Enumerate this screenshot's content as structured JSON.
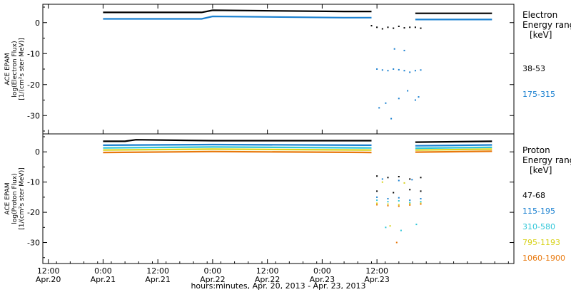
{
  "chart_data": [
    {
      "type": "scatter",
      "panel": "electron",
      "ylabel": [
        "ACE EPAM",
        "log(Electron Flux)",
        "[1/(cm²s ster MeV)]"
      ],
      "ylim": [
        -35,
        5
      ],
      "yticks": [
        0,
        -10,
        -20,
        -30
      ],
      "legend_title": [
        "Electron",
        "Energy ranges",
        "[keV]"
      ],
      "series": [
        {
          "name": "38-53",
          "color": "#000000",
          "segments": [
            [
              [
                0,
                3.3
              ],
              [
                0.9,
                3.3
              ],
              [
                1.0,
                4.0
              ],
              [
                2.2,
                3.6
              ],
              [
                2.45,
                3.6
              ]
            ],
            [
              [
                2.85,
                3.0
              ],
              [
                3.55,
                3.0
              ]
            ]
          ],
          "gap": [
            [
              2.45,
              -1.0
            ],
            [
              2.5,
              -1.5
            ],
            [
              2.55,
              -2.0
            ],
            [
              2.6,
              -1.5
            ],
            [
              2.65,
              -1.8
            ],
            [
              2.7,
              -1.2
            ],
            [
              2.75,
              -1.7
            ],
            [
              2.8,
              -1.5
            ],
            [
              2.85,
              -1.5
            ],
            [
              2.9,
              -1.8
            ]
          ]
        },
        {
          "name": "175-315",
          "color": "#1a80d0",
          "segments": [
            [
              [
                0,
                1.2
              ],
              [
                0.9,
                1.2
              ],
              [
                1.0,
                2.0
              ],
              [
                2.2,
                1.6
              ],
              [
                2.45,
                1.6
              ]
            ],
            [
              [
                2.85,
                1.0
              ],
              [
                3.55,
                1.0
              ]
            ]
          ],
          "gap": [
            [
              2.5,
              -15.0
            ],
            [
              2.55,
              -15.3
            ],
            [
              2.6,
              -15.5
            ],
            [
              2.65,
              -15.0
            ],
            [
              2.7,
              -15.2
            ],
            [
              2.75,
              -15.5
            ],
            [
              2.8,
              -16.0
            ],
            [
              2.85,
              -15.5
            ],
            [
              2.9,
              -15.3
            ],
            [
              2.52,
              -27.5
            ],
            [
              2.58,
              -26.0
            ],
            [
              2.63,
              -31.0
            ],
            [
              2.7,
              -24.5
            ],
            [
              2.78,
              -22.0
            ],
            [
              2.85,
              -25.0
            ],
            [
              2.88,
              -24.0
            ],
            [
              2.66,
              -8.5
            ],
            [
              2.75,
              -9.0
            ]
          ]
        }
      ]
    },
    {
      "type": "scatter",
      "panel": "proton",
      "ylabel": [
        "ACE EPAM",
        "log(Proton Flux)",
        "[1/(cm²s ster MeV)]"
      ],
      "ylim": [
        -36,
        5
      ],
      "yticks": [
        0,
        -10,
        -20,
        -30
      ],
      "legend_title": [
        "Proton",
        "Energy ranges",
        "[keV]"
      ],
      "series": [
        {
          "name": "47-68",
          "color": "#000000",
          "segments": [
            [
              [
                0,
                3.5
              ],
              [
                0.2,
                3.5
              ],
              [
                0.3,
                4.0
              ],
              [
                1.0,
                3.7
              ],
              [
                2.45,
                3.7
              ]
            ],
            [
              [
                2.85,
                3.2
              ],
              [
                3.55,
                3.5
              ]
            ]
          ],
          "gap": [
            [
              2.5,
              -8.0
            ],
            [
              2.6,
              -8.5
            ],
            [
              2.7,
              -8.2
            ],
            [
              2.8,
              -9.0
            ],
            [
              2.9,
              -8.5
            ],
            [
              2.5,
              -13.0
            ],
            [
              2.65,
              -13.5
            ],
            [
              2.8,
              -12.5
            ],
            [
              2.9,
              -13.0
            ]
          ]
        },
        {
          "name": "115-195",
          "color": "#1a80d0",
          "segments": [
            [
              [
                0,
                2.2
              ],
              [
                1.0,
                2.4
              ],
              [
                2.45,
                2.2
              ]
            ],
            [
              [
                2.85,
                2.0
              ],
              [
                3.55,
                2.3
              ]
            ]
          ],
          "gap": [
            [
              2.5,
              -15.0
            ],
            [
              2.6,
              -15.5
            ],
            [
              2.7,
              -15.2
            ],
            [
              2.8,
              -16.0
            ],
            [
              2.9,
              -15.5
            ],
            [
              2.55,
              -9.0
            ],
            [
              2.7,
              -9.5
            ],
            [
              2.82,
              -9.2
            ]
          ]
        },
        {
          "name": "310-580",
          "color": "#2fc6d8",
          "segments": [
            [
              [
                0,
                1.3
              ],
              [
                1.0,
                1.6
              ],
              [
                2.45,
                1.3
              ]
            ],
            [
              [
                2.85,
                1.2
              ],
              [
                3.55,
                1.5
              ]
            ]
          ],
          "gap": [
            [
              2.5,
              -16.0
            ],
            [
              2.6,
              -16.5
            ],
            [
              2.7,
              -16.2
            ],
            [
              2.8,
              -16.8
            ],
            [
              2.9,
              -16.5
            ],
            [
              2.58,
              -25.0
            ],
            [
              2.72,
              -26.0
            ],
            [
              2.86,
              -24.0
            ]
          ]
        },
        {
          "name": "795-1193",
          "color": "#d8d21a",
          "segments": [
            [
              [
                0,
                0.6
              ],
              [
                1.0,
                0.9
              ],
              [
                2.45,
                0.6
              ]
            ],
            [
              [
                2.85,
                0.6
              ],
              [
                3.55,
                0.9
              ]
            ]
          ],
          "gap": [
            [
              2.5,
              -17.0
            ],
            [
              2.6,
              -17.3
            ],
            [
              2.7,
              -17.5
            ],
            [
              2.8,
              -17.2
            ],
            [
              2.9,
              -17.0
            ],
            [
              2.55,
              -10.0
            ],
            [
              2.75,
              -10.3
            ],
            [
              2.62,
              -24.5
            ]
          ]
        },
        {
          "name": "1060-1900",
          "color": "#e8780c",
          "segments": [
            [
              [
                0,
                -0.2
              ],
              [
                1.0,
                0.1
              ],
              [
                2.45,
                -0.2
              ]
            ],
            [
              [
                2.85,
                -0.1
              ],
              [
                3.55,
                0.2
              ]
            ]
          ],
          "gap": [
            [
              2.5,
              -17.5
            ],
            [
              2.6,
              -17.8
            ],
            [
              2.7,
              -18.0
            ],
            [
              2.8,
              -17.6
            ],
            [
              2.9,
              -17.3
            ],
            [
              2.68,
              -30.0
            ]
          ]
        }
      ]
    }
  ],
  "x_axis": {
    "xlim": [
      -0.55,
      3.75
    ],
    "xlabel": "hours:minutes, Apr. 20, 2013 - Apr. 23, 2013",
    "ticks": [
      {
        "x": -0.5,
        "time": "12:00",
        "date": "Apr.20"
      },
      {
        "x": 0.0,
        "time": "0:00",
        "date": "Apr.21"
      },
      {
        "x": 0.5,
        "time": "12:00",
        "date": "Apr.21"
      },
      {
        "x": 1.0,
        "time": "0:00",
        "date": "Apr.22"
      },
      {
        "x": 1.5,
        "time": "12:00",
        "date": "Apr.22"
      },
      {
        "x": 2.0,
        "time": "0:00",
        "date": "Apr.23"
      },
      {
        "x": 2.5,
        "time": "12:00",
        "date": "Apr.23"
      }
    ]
  }
}
